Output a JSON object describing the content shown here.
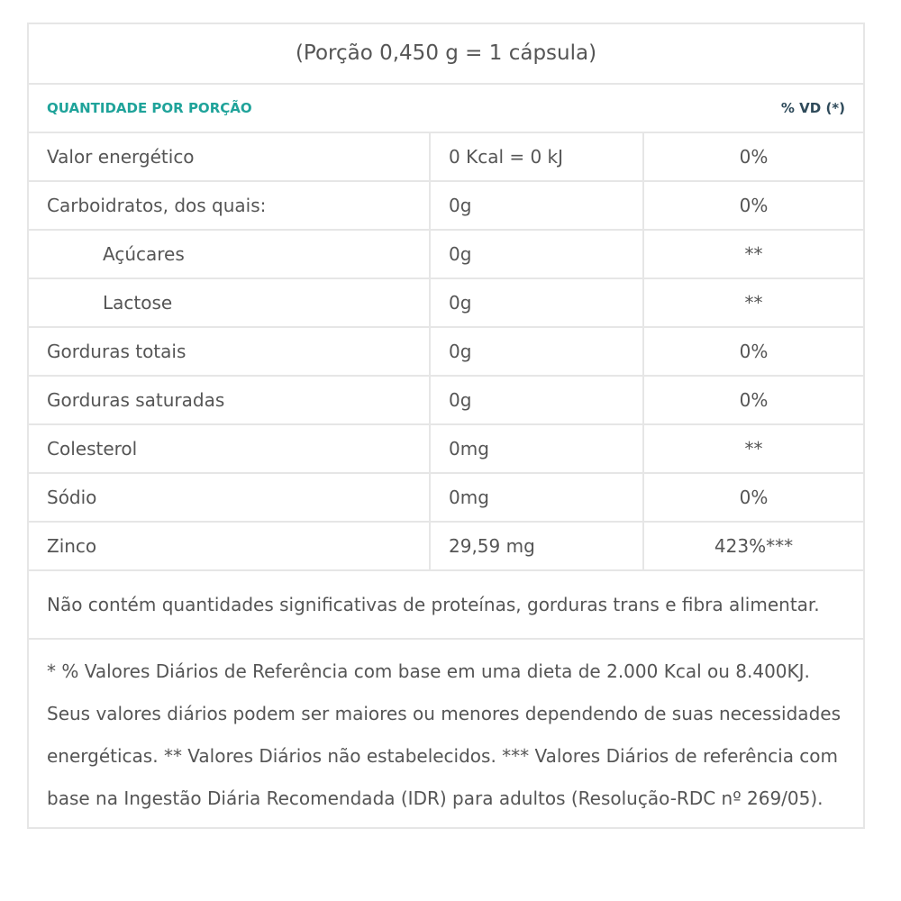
{
  "title": "(Porção 0,450 g = 1 cápsula)",
  "header": {
    "left": "QUANTIDADE POR PORÇÃO",
    "right": "% VD (*)"
  },
  "accent_color": "#1fa39a",
  "rows": [
    {
      "name": "Valor energético",
      "amount": "0 Kcal = 0 kJ",
      "vd": "0%",
      "indent": false
    },
    {
      "name": "Carboidratos, dos quais:",
      "amount": "0g",
      "vd": "0%",
      "indent": false
    },
    {
      "name": "Açúcares",
      "amount": "0g",
      "vd": "**",
      "indent": true
    },
    {
      "name": "Lactose",
      "amount": "0g",
      "vd": "**",
      "indent": true
    },
    {
      "name": "Gorduras totais",
      "amount": "0g",
      "vd": "0%",
      "indent": false
    },
    {
      "name": "Gorduras saturadas",
      "amount": "0g",
      "vd": "0%",
      "indent": false
    },
    {
      "name": "Colesterol",
      "amount": "0mg",
      "vd": "**",
      "indent": false
    },
    {
      "name": "Sódio",
      "amount": "0mg",
      "vd": "0%",
      "indent": false
    },
    {
      "name": "Zinco",
      "amount": "29,59 mg",
      "vd": "423%***",
      "indent": false
    }
  ],
  "note": "Não contém quantidades significativas de proteínas, gorduras trans e fibra alimentar.",
  "footnote": "* % Valores Diários de Referência com base em uma dieta de 2.000 Kcal ou 8.400KJ. Seus valores diários podem ser maiores ou menores dependendo de suas necessidades energéticas. ** Valores Diários não estabelecidos. *** Valores Diários de referência com base na Ingestão Diária Recomendada (IDR) para adultos (Resolução-RDC nº 269/05)."
}
